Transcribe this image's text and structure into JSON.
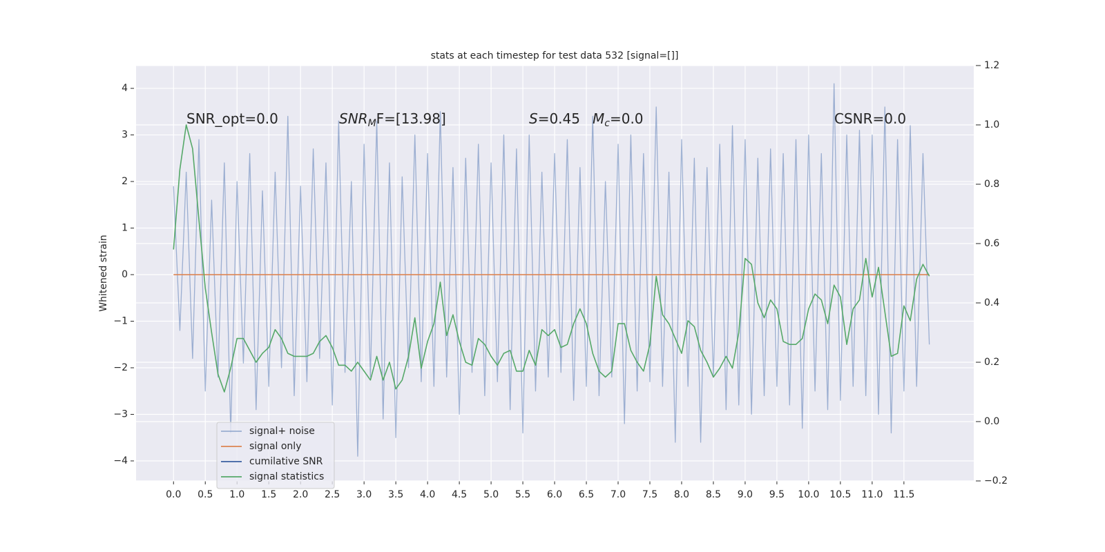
{
  "chart_data": {
    "type": "line",
    "title": "stats at each timestep for test data 532 [signal=[]]",
    "ylabel": "Whitened strain",
    "annotations": [
      [
        "SNR_opt=0.0"
      ],
      [
        "SNR",
        "M",
        "F=[13.98]"
      ],
      [
        "S",
        "=0.45"
      ],
      [
        "M",
        "c",
        "=0.0"
      ],
      [
        "CSNR=0.0"
      ]
    ],
    "x": [
      0,
      0.1,
      0.2,
      0.3,
      0.4,
      0.5,
      0.6,
      0.7,
      0.8,
      0.9,
      1.0,
      1.1,
      1.2,
      1.3,
      1.4,
      1.5,
      1.6,
      1.7,
      1.8,
      1.9,
      2.0,
      2.1,
      2.2,
      2.3,
      2.4,
      2.5,
      2.6,
      2.7,
      2.8,
      2.9,
      3.0,
      3.1,
      3.2,
      3.3,
      3.4,
      3.5,
      3.6,
      3.7,
      3.8,
      3.9,
      4.0,
      4.1,
      4.2,
      4.3,
      4.4,
      4.5,
      4.6,
      4.7,
      4.8,
      4.9,
      5.0,
      5.1,
      5.2,
      5.3,
      5.4,
      5.5,
      5.6,
      5.7,
      5.8,
      5.9,
      6.0,
      6.1,
      6.2,
      6.3,
      6.4,
      6.5,
      6.6,
      6.7,
      6.8,
      6.9,
      7.0,
      7.1,
      7.2,
      7.3,
      7.4,
      7.5,
      7.6,
      7.7,
      7.8,
      7.9,
      8.0,
      8.1,
      8.2,
      8.3,
      8.4,
      8.5,
      8.6,
      8.7,
      8.8,
      8.9,
      9.0,
      9.1,
      9.2,
      9.3,
      9.4,
      9.5,
      9.6,
      9.7,
      9.8,
      9.9,
      10.0,
      10.1,
      10.2,
      10.3,
      10.4,
      10.5,
      10.6,
      10.7,
      10.8,
      10.9,
      11.0,
      11.1,
      11.2,
      11.3,
      11.4,
      11.5,
      11.6,
      11.7,
      11.8,
      11.9
    ],
    "series": [
      {
        "name": "signal+ noise",
        "color": "#4c72b0",
        "opacity": 0.5,
        "values": [
          1.9,
          -1.2,
          2.2,
          -1.8,
          2.9,
          -2.5,
          1.6,
          -2.2,
          2.4,
          -3.4,
          2.0,
          -1.9,
          2.6,
          -2.9,
          1.8,
          -2.4,
          2.2,
          -2.0,
          3.4,
          -2.6,
          1.9,
          -2.3,
          2.7,
          -1.8,
          2.4,
          -2.8,
          3.3,
          -2.1,
          2.0,
          -3.9,
          2.8,
          -2.2,
          3.3,
          -3.1,
          2.4,
          -3.5,
          2.1,
          -2.0,
          3.0,
          -2.3,
          2.6,
          -2.4,
          3.5,
          -2.2,
          2.3,
          -3.0,
          2.5,
          -2.1,
          2.8,
          -2.6,
          2.4,
          -2.3,
          3.0,
          -2.9,
          2.7,
          -3.4,
          3.0,
          -2.5,
          2.2,
          -2.2,
          2.6,
          -2.1,
          2.9,
          -2.7,
          2.3,
          -2.4,
          3.4,
          -2.6,
          2.0,
          -2.2,
          2.8,
          -3.2,
          3.0,
          -2.5,
          2.6,
          -2.3,
          3.6,
          -2.4,
          2.2,
          -3.6,
          2.9,
          -2.4,
          2.5,
          -3.6,
          2.3,
          -2.2,
          2.8,
          -2.9,
          3.2,
          -2.8,
          2.9,
          -3.0,
          2.5,
          -2.6,
          2.7,
          -2.4,
          2.6,
          -2.8,
          2.9,
          -3.3,
          3.0,
          -2.5,
          2.6,
          -2.9,
          4.1,
          -2.7,
          3.0,
          -2.4,
          3.1,
          -2.6,
          3.0,
          -3.0,
          3.6,
          -3.4,
          2.9,
          -2.5,
          3.2,
          -2.4,
          2.6,
          -1.5
        ]
      },
      {
        "name": "signal only",
        "color": "#dd8452",
        "values": [
          0,
          0,
          0,
          0,
          0,
          0,
          0,
          0,
          0,
          0,
          0,
          0,
          0,
          0,
          0,
          0,
          0,
          0,
          0,
          0,
          0,
          0,
          0,
          0,
          0,
          0,
          0,
          0,
          0,
          0,
          0,
          0,
          0,
          0,
          0,
          0,
          0,
          0,
          0,
          0,
          0,
          0,
          0,
          0,
          0,
          0,
          0,
          0,
          0,
          0,
          0,
          0,
          0,
          0,
          0,
          0,
          0,
          0,
          0,
          0,
          0,
          0,
          0,
          0,
          0,
          0,
          0,
          0,
          0,
          0,
          0,
          0,
          0,
          0,
          0,
          0,
          0,
          0,
          0,
          0,
          0,
          0,
          0,
          0,
          0,
          0,
          0,
          0,
          0,
          0,
          0,
          0,
          0,
          0,
          0,
          0,
          0,
          0,
          0,
          0,
          0,
          0,
          0,
          0,
          0,
          0,
          0,
          0,
          0,
          0,
          0,
          0,
          0,
          0,
          0,
          0,
          0,
          0,
          0,
          0
        ]
      },
      {
        "name": "cumilative SNR",
        "color": "#3a5fa0"
      },
      {
        "name": "signal statistics",
        "color": "#55a868",
        "axis": "y2",
        "values": [
          0.58,
          0.85,
          1.0,
          0.92,
          0.68,
          0.45,
          0.3,
          0.16,
          0.1,
          0.18,
          0.28,
          0.28,
          0.24,
          0.2,
          0.23,
          0.25,
          0.31,
          0.28,
          0.23,
          0.22,
          0.22,
          0.22,
          0.23,
          0.27,
          0.29,
          0.25,
          0.19,
          0.19,
          0.17,
          0.2,
          0.17,
          0.14,
          0.22,
          0.14,
          0.2,
          0.11,
          0.14,
          0.22,
          0.35,
          0.18,
          0.27,
          0.33,
          0.47,
          0.29,
          0.36,
          0.27,
          0.2,
          0.19,
          0.28,
          0.26,
          0.22,
          0.19,
          0.23,
          0.24,
          0.17,
          0.17,
          0.24,
          0.19,
          0.31,
          0.29,
          0.31,
          0.25,
          0.26,
          0.33,
          0.38,
          0.33,
          0.23,
          0.17,
          0.15,
          0.17,
          0.33,
          0.33,
          0.24,
          0.2,
          0.17,
          0.26,
          0.49,
          0.36,
          0.33,
          0.28,
          0.23,
          0.34,
          0.32,
          0.24,
          0.2,
          0.15,
          0.18,
          0.22,
          0.18,
          0.3,
          0.55,
          0.53,
          0.4,
          0.35,
          0.41,
          0.38,
          0.27,
          0.26,
          0.26,
          0.28,
          0.38,
          0.43,
          0.41,
          0.33,
          0.46,
          0.42,
          0.26,
          0.38,
          0.41,
          0.55,
          0.42,
          0.52,
          0.37,
          0.22,
          0.23,
          0.39,
          0.34,
          0.48,
          0.53,
          0.49
        ]
      }
    ],
    "xlim": [
      -0.59,
      12.6
    ],
    "xticks": [
      {
        "value": 0,
        "label": "0.0"
      },
      {
        "value": 0.5,
        "label": "0.5"
      },
      {
        "value": 1,
        "label": "1.0"
      },
      {
        "value": 1.5,
        "label": "1.5"
      },
      {
        "value": 2,
        "label": "2.0"
      },
      {
        "value": 2.5,
        "label": "2.5"
      },
      {
        "value": 3,
        "label": "3.0"
      },
      {
        "value": 3.5,
        "label": "3.5"
      },
      {
        "value": 4,
        "label": "4.0"
      },
      {
        "value": 4.5,
        "label": "4.5"
      },
      {
        "value": 5,
        "label": "5.0"
      },
      {
        "value": 5.5,
        "label": "5.5"
      },
      {
        "value": 6,
        "label": "6.0"
      },
      {
        "value": 6.5,
        "label": "6.5"
      },
      {
        "value": 7,
        "label": "7.0"
      },
      {
        "value": 7.5,
        "label": "7.5"
      },
      {
        "value": 8,
        "label": "8.0"
      },
      {
        "value": 8.5,
        "label": "8.5"
      },
      {
        "value": 9,
        "label": "9.0"
      },
      {
        "value": 9.5,
        "label": "9.5"
      },
      {
        "value": 10,
        "label": "10.0"
      },
      {
        "value": 10.5,
        "label": "10.5"
      },
      {
        "value": 11,
        "label": "11.0"
      },
      {
        "value": 11.5,
        "label": "11.5"
      }
    ],
    "ylim": [
      -4.43,
      4.49
    ],
    "yticks": [
      {
        "value": -4,
        "label": "−4"
      },
      {
        "value": -3,
        "label": "−3"
      },
      {
        "value": -2,
        "label": "−2"
      },
      {
        "value": -1,
        "label": "−1"
      },
      0,
      1,
      2,
      3,
      4
    ],
    "y2lim": [
      -0.2,
      1.2
    ],
    "y2ticks": [
      {
        "value": -0.2,
        "label": "−0.2"
      },
      {
        "value": 0,
        "label": "0.0"
      },
      0.2,
      0.4,
      0.6,
      0.8,
      {
        "value": 1,
        "label": "1.0"
      },
      1.2
    ],
    "grid": true,
    "legend": "lower left"
  }
}
